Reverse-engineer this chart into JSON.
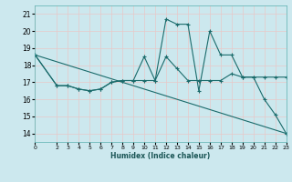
{
  "xlabel": "Humidex (Indice chaleur)",
  "background_color": "#cce8ee",
  "grid_color": "#e8c8c8",
  "line_color": "#1a6b6b",
  "xlim": [
    0,
    23
  ],
  "ylim": [
    13.5,
    21.5
  ],
  "yticks": [
    14,
    15,
    16,
    17,
    18,
    19,
    20,
    21
  ],
  "xticks": [
    0,
    2,
    3,
    4,
    5,
    6,
    7,
    8,
    9,
    10,
    11,
    12,
    13,
    14,
    15,
    16,
    17,
    18,
    19,
    20,
    21,
    22,
    23
  ],
  "series1_x": [
    0,
    2,
    3,
    4,
    5,
    6,
    7,
    8,
    9,
    10,
    11,
    12,
    13,
    14,
    15,
    16,
    17,
    18,
    19,
    20,
    21,
    22,
    23
  ],
  "series1_y": [
    18.6,
    16.8,
    16.8,
    16.6,
    16.5,
    16.6,
    17.0,
    17.1,
    17.1,
    18.5,
    17.1,
    20.7,
    20.4,
    20.4,
    16.5,
    20.0,
    18.6,
    18.6,
    17.3,
    17.3,
    17.3,
    17.3,
    17.3
  ],
  "series2_x": [
    0,
    2,
    3,
    4,
    5,
    6,
    7,
    8,
    9,
    10,
    11,
    12,
    13,
    14,
    15,
    16,
    17,
    18,
    19,
    20,
    21,
    22,
    23
  ],
  "series2_y": [
    18.6,
    16.8,
    16.8,
    16.6,
    16.5,
    16.6,
    17.0,
    17.1,
    17.1,
    17.1,
    17.1,
    18.5,
    17.8,
    17.1,
    17.1,
    17.1,
    17.1,
    17.5,
    17.3,
    17.3,
    16.0,
    15.1,
    14.0
  ],
  "series3_x": [
    0,
    23
  ],
  "series3_y": [
    18.6,
    14.0
  ]
}
